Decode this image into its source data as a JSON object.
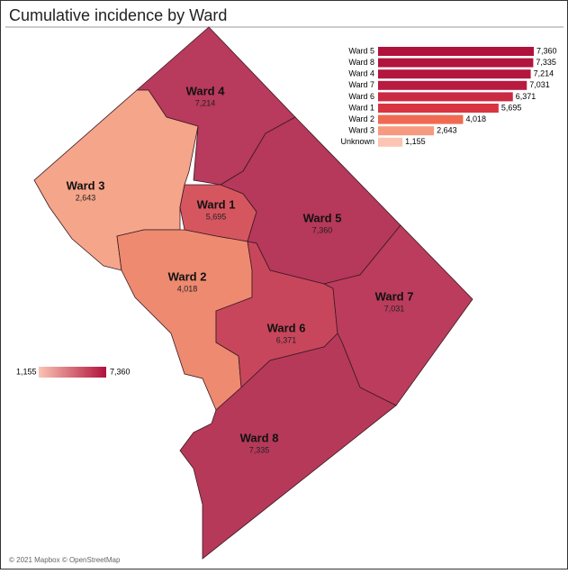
{
  "title": "Cumulative incidence by Ward",
  "map": {
    "regions": [
      {
        "name": "Ward 4",
        "value": 7214,
        "value_label": "7,214",
        "color": "#b83a5c"
      },
      {
        "name": "Ward 3",
        "value": 2643,
        "value_label": "2,643",
        "color": "#f5a58a"
      },
      {
        "name": "Ward 1",
        "value": 5695,
        "value_label": "5,695",
        "color": "#d65660"
      },
      {
        "name": "Ward 5",
        "value": 7360,
        "value_label": "7,360",
        "color": "#b6385a"
      },
      {
        "name": "Ward 2",
        "value": 4018,
        "value_label": "4,018",
        "color": "#ee8a70"
      },
      {
        "name": "Ward 6",
        "value": 6371,
        "value_label": "6,371",
        "color": "#c8465c"
      },
      {
        "name": "Ward 7",
        "value": 7031,
        "value_label": "7,031",
        "color": "#bb3c5c"
      },
      {
        "name": "Ward 8",
        "value": 7335,
        "value_label": "7,335",
        "color": "#b6395a"
      }
    ]
  },
  "legend": {
    "min": {
      "value": 1155,
      "label": "1,155"
    },
    "max": {
      "value": 7360,
      "label": "7,360"
    }
  },
  "chart_data": {
    "type": "bar",
    "orientation": "horizontal",
    "categories": [
      "Ward 5",
      "Ward 8",
      "Ward 4",
      "Ward 7",
      "Ward 6",
      "Ward 1",
      "Ward 2",
      "Ward 3",
      "Unknown"
    ],
    "values": [
      7360,
      7335,
      7214,
      7031,
      6371,
      5695,
      4018,
      2643,
      1155
    ],
    "value_labels": [
      "7,360",
      "7,335",
      "7,214",
      "7,031",
      "6,371",
      "5,695",
      "4,018",
      "2,643",
      "1,155"
    ],
    "colors": [
      "#b0123c",
      "#b1143d",
      "#b3163e",
      "#b81a40",
      "#c92a42",
      "#d93442",
      "#f06a52",
      "#f69a80",
      "#fbc4b3"
    ]
  },
  "attribution": "© 2021 Mapbox © OpenStreetMap"
}
